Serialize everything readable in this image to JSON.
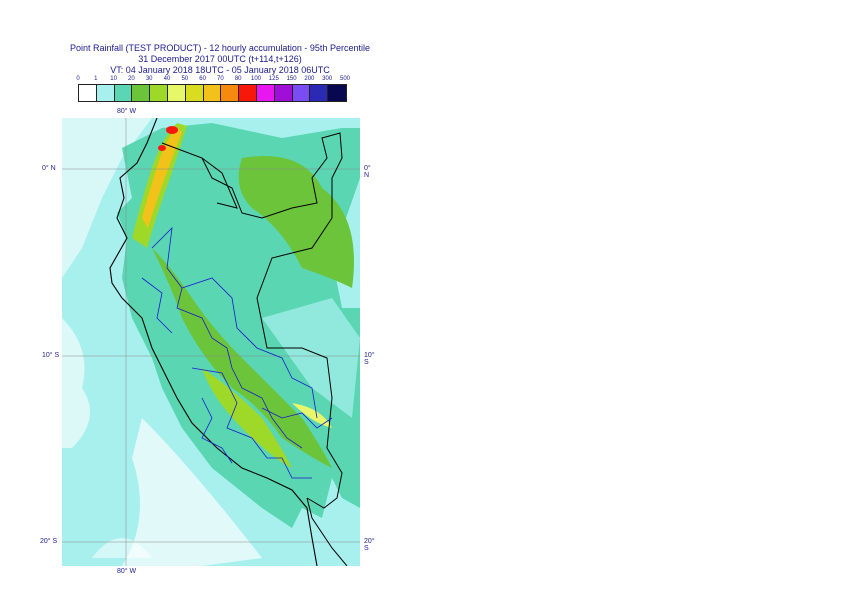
{
  "title": {
    "line1": "Point Rainfall (TEST PRODUCT) - 12 hourly accumulation - 95th Percentile",
    "line2": "31 December 2017 00UTC (t+114,t+126)",
    "line3": "VT: 04 January 2018 18UTC - 05 January 2018 06UTC"
  },
  "legend": {
    "ticks": [
      "0",
      "1",
      "10",
      "20",
      "30",
      "40",
      "50",
      "60",
      "70",
      "80",
      "100",
      "125",
      "150",
      "200",
      "300",
      "500"
    ],
    "colors": [
      "#ffffff",
      "#a8f0ee",
      "#5ad6b2",
      "#6cc43a",
      "#9ed92a",
      "#e7f76a",
      "#d9dd1f",
      "#f2c21a",
      "#f58a0e",
      "#f8170b",
      "#e817f0",
      "#a00fd8",
      "#7a4cf4",
      "#2a2ab4",
      "#080850"
    ]
  },
  "map": {
    "lon_label_top": "80° W",
    "lon_label_bottom": "80° W",
    "lat_labels_left": [
      "0° N",
      "10° S",
      "20° S"
    ],
    "lat_labels_right": [
      "0° N",
      "10° S",
      "20° S"
    ]
  }
}
